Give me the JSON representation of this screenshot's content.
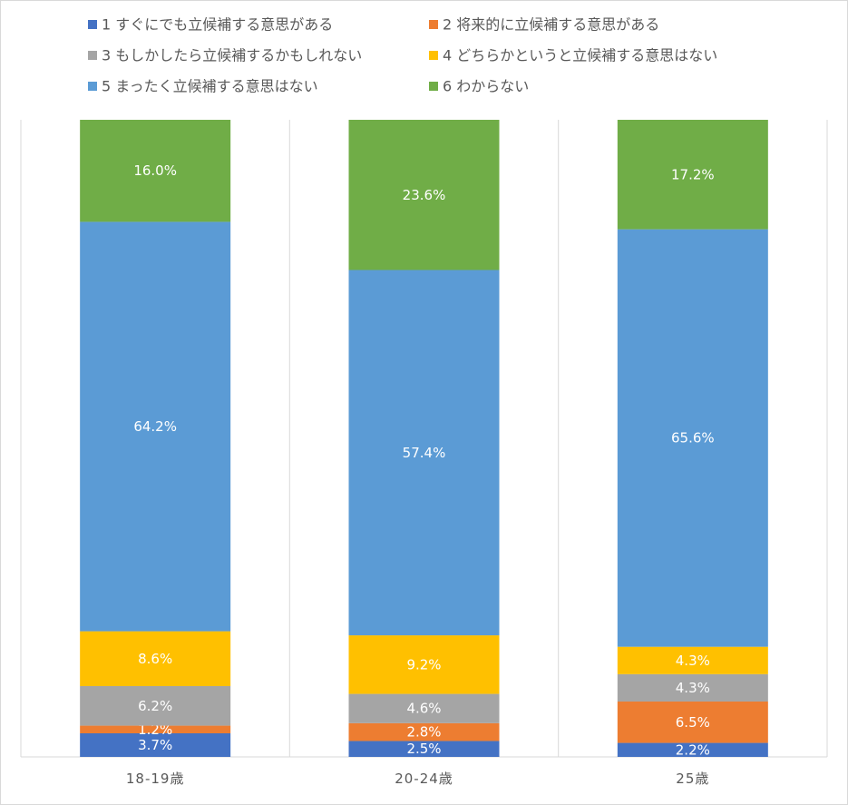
{
  "chart_data": {
    "type": "bar",
    "stacked": true,
    "orientation": "vertical",
    "normalized": true,
    "categories": [
      "18-19歳",
      "20-24歳",
      "25歳"
    ],
    "series": [
      {
        "name": "1 すぐにでも立候補する意思がある",
        "color": "#4472C4",
        "values": [
          3.7,
          2.5,
          2.2
        ],
        "labels": [
          "3.7%",
          "2.5%",
          "2.2%"
        ]
      },
      {
        "name": "2 将来的に立候補する意思がある",
        "color": "#ED7D31",
        "values": [
          1.2,
          2.8,
          6.5
        ],
        "labels": [
          "1.2%",
          "2.8%",
          "6.5%"
        ]
      },
      {
        "name": "3 もしかしたら立候補するかもしれない",
        "color": "#A5A5A5",
        "values": [
          6.2,
          4.6,
          4.3
        ],
        "labels": [
          "6.2%",
          "4.6%",
          "4.3%"
        ]
      },
      {
        "name": "4 どちらかというと立候補する意思はない",
        "color": "#FFC000",
        "values": [
          8.6,
          9.2,
          4.3
        ],
        "labels": [
          "8.6%",
          "9.2%",
          "4.3%"
        ]
      },
      {
        "name": "5 まったく立候補する意思はない",
        "color": "#5B9BD5",
        "values": [
          64.2,
          57.4,
          65.6
        ],
        "labels": [
          "64.2%",
          "57.4%",
          "65.6%"
        ]
      },
      {
        "name": "6 わからない",
        "color": "#70AD47",
        "values": [
          16.0,
          23.6,
          17.2
        ],
        "labels": [
          "16.0%",
          "23.6%",
          "17.2%"
        ]
      }
    ],
    "legend_position": "top",
    "grid": false,
    "category_separators": true
  }
}
